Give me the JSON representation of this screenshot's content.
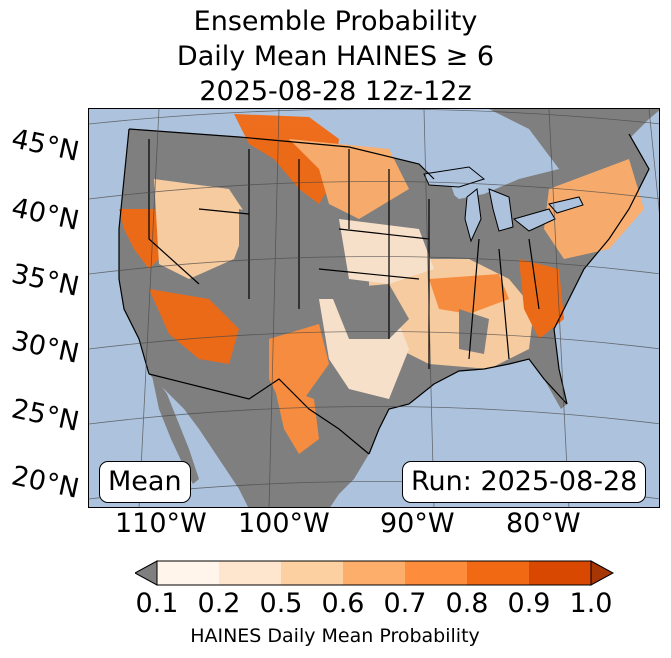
{
  "title": {
    "line1": "Ensemble Probability",
    "line2": "Daily Mean HAINES ≥ 6",
    "line3": "2025-08-28 12z-12z"
  },
  "map": {
    "lat_labels": [
      "45°N",
      "40°N",
      "35°N",
      "30°N",
      "25°N",
      "20°N"
    ],
    "lon_labels": [
      "110°W",
      "100°W",
      "90°W",
      "80°W"
    ],
    "left_box": "Mean",
    "right_box": "Run: 2025-08-28",
    "colors": {
      "ocean": "#adc3dd",
      "no_data_land": "#7f7f7f",
      "border": "#000000"
    }
  },
  "colorbar": {
    "ticks": [
      "0.1",
      "0.2",
      "0.5",
      "0.6",
      "0.7",
      "0.8",
      "0.9",
      "1.0"
    ],
    "label": "HAINES Daily Mean Probability",
    "colors": [
      "#fff5eb",
      "#fee6ce",
      "#fdd0a2",
      "#fdae6b",
      "#fd8d3c",
      "#f16913",
      "#d94801",
      "#a63603"
    ],
    "under_color": "#7f7f7f"
  }
}
